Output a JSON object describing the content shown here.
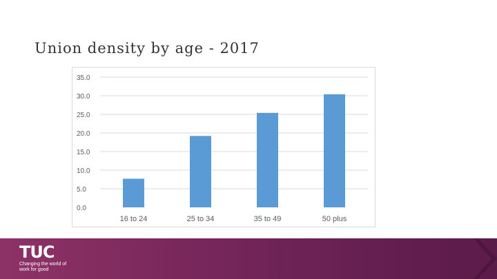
{
  "slide": {
    "title": "Union density by age - 2017"
  },
  "footer": {
    "logo_text": "TUC",
    "tagline": "Changing the world of work for good",
    "background": "#7a2a5e"
  },
  "chart_data": {
    "type": "bar",
    "title": "",
    "xlabel": "",
    "ylabel": "",
    "categories": [
      "16 to 24",
      "25 to 34",
      "35 to 49",
      "50 plus"
    ],
    "values": [
      7.7,
      19.2,
      25.4,
      30.4
    ],
    "ylim": [
      0,
      35
    ],
    "y_ticks": [
      "0.0",
      "5.0",
      "10.0",
      "15.0",
      "20.0",
      "25.0",
      "30.0",
      "35.0"
    ],
    "grid": true,
    "legend": "none",
    "bar_color": "#5b9bd5"
  }
}
